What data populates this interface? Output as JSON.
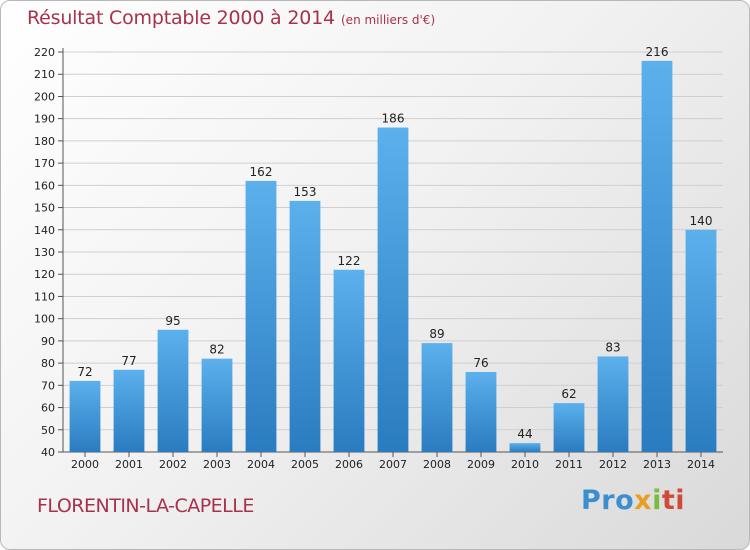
{
  "chart_data": {
    "type": "bar",
    "title": "Résultat Comptable 2000 à 2014",
    "subtitle": "(en milliers d'€)",
    "categories": [
      "2000",
      "2001",
      "2002",
      "2003",
      "2004",
      "2005",
      "2006",
      "2007",
      "2008",
      "2009",
      "2010",
      "2011",
      "2012",
      "2013",
      "2014"
    ],
    "values": [
      72,
      77,
      95,
      82,
      162,
      153,
      122,
      186,
      89,
      76,
      44,
      62,
      83,
      216,
      140
    ],
    "ylim": [
      40,
      220
    ],
    "yticks": [
      40,
      50,
      60,
      70,
      80,
      90,
      100,
      110,
      120,
      130,
      140,
      150,
      160,
      170,
      180,
      190,
      200,
      210,
      220
    ],
    "xlabel": "",
    "ylabel": "",
    "grid": true,
    "bar_color": "#3c95d8"
  },
  "commune": "FLORENTIN-LA-CAPELLE",
  "logo": {
    "text": "Proxiti",
    "parts": [
      "Pro",
      "x",
      "i",
      "ti"
    ]
  }
}
